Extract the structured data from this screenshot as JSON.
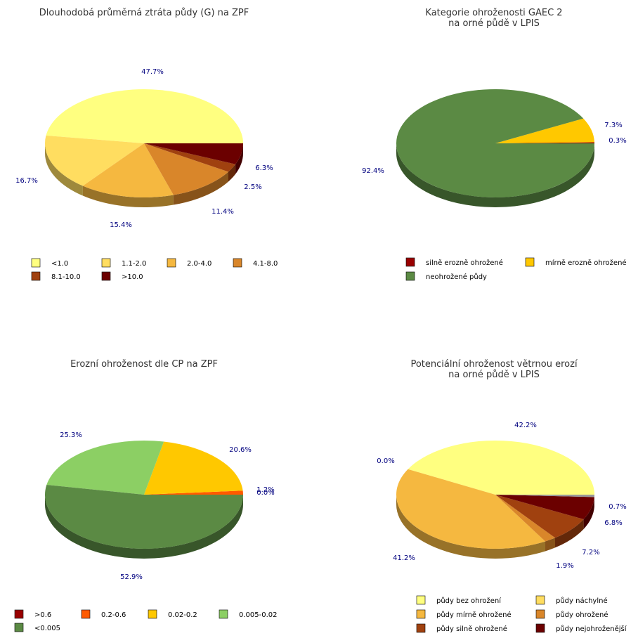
{
  "chart_data": [
    {
      "type": "pie",
      "title": [
        "Dlouhodobá průměrná ztráta půdy (G) na ZPF"
      ],
      "categories": [
        "<1.0",
        "1.1-2.0",
        "2.0-4.0",
        "4.1-8.0",
        "8.1-10.0",
        ">10.0"
      ],
      "values": [
        47.7,
        16.7,
        15.4,
        11.4,
        2.5,
        6.3
      ],
      "labels": [
        "47.7%",
        "16.7%",
        "15.4%",
        "11.4%",
        "2.5%",
        "6.3%"
      ],
      "colors": [
        "#ffff80",
        "#ffdd60",
        "#f5b840",
        "#d9862a",
        "#a0410f",
        "#6b0000"
      ],
      "legend_columns": 4
    },
    {
      "type": "pie",
      "title": [
        "Kategorie ohroženosti GAEC 2",
        "na orné půdě v LPIS"
      ],
      "categories": [
        "silně erozně ohrožené",
        "mírně erozně ohrožené",
        "neohrožené půdy"
      ],
      "values": [
        0.3,
        7.3,
        92.4
      ],
      "labels": [
        "0.3%",
        "7.3%",
        "92.4%"
      ],
      "colors": [
        "#990000",
        "#ffc800",
        "#5b8a44"
      ],
      "legend_columns": 2
    },
    {
      "type": "pie",
      "title": [
        "Erozní ohroženost dle CP na ZPF"
      ],
      "categories": [
        ">0.6",
        "0.2-0.6",
        "0.02-0.2",
        "0.005-0.02",
        "<0.005"
      ],
      "values": [
        0.0,
        1.2,
        20.6,
        25.3,
        52.9
      ],
      "labels": [
        "0.0%",
        "1.2%",
        "20.6%",
        "25.3%",
        "52.9%"
      ],
      "colors": [
        "#990000",
        "#ff5a00",
        "#ffc800",
        "#8ccf64",
        "#5b8a44"
      ],
      "legend_columns": 4
    },
    {
      "type": "pie",
      "title": [
        "Potenciální ohroženost větrnou erozí",
        "na orné půdě v LPIS"
      ],
      "categories": [
        "půdy bez ohrožení",
        "půdy náchylné",
        "půdy mírně ohrožené",
        "půdy ohrožené",
        "půdy silně ohrožené",
        "půdy nejohroženější",
        ""
      ],
      "values": [
        42.2,
        0.0,
        41.2,
        1.9,
        7.2,
        6.8,
        0.7
      ],
      "labels": [
        "42.2%",
        "0.0%",
        "41.2%",
        "1.9%",
        "7.2%",
        "6.8%",
        "0.7%"
      ],
      "colors": [
        "#ffff80",
        "#ffdd60",
        "#f5b840",
        "#d9862a",
        "#a0410f",
        "#6b0000",
        "#999999"
      ],
      "legend_columns": 2
    }
  ]
}
